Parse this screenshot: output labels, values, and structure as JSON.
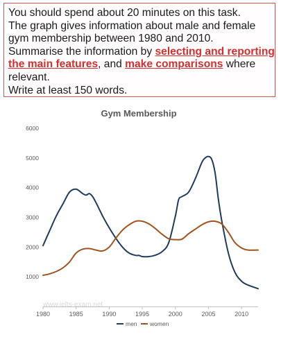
{
  "task": {
    "line1": "You should spend about 20 minutes on this task.",
    "line2": "The graph gives information about male and female gym membership between 1980 and 2010.",
    "line3_prefix": "Summarise the information by ",
    "line3_emph1": "selecting and reporting the main features",
    "line3_mid": ", and ",
    "line3_emph2": "make comparisons",
    "line3_suffix": " where relevant.",
    "line4": "Write at least 150 words."
  },
  "watermark": "www.ielts-exam.net",
  "colors": {
    "men": "#1f3a5f",
    "women": "#a0531e",
    "task_border": "#d9534f",
    "emphasis": "#d32f2f"
  },
  "chart_data": {
    "type": "line",
    "title": "Gym Membership",
    "xlabel": "",
    "ylabel": "",
    "xlim": [
      1980,
      2012.5
    ],
    "ylim": [
      0,
      6000
    ],
    "xticks": [
      1980,
      1985,
      1990,
      1995,
      2000,
      2005,
      2010
    ],
    "yticks": [
      1000,
      2000,
      3000,
      4000,
      5000,
      6000
    ],
    "grid": false,
    "legend_position": "bottom",
    "series": [
      {
        "name": "men",
        "color": "#1f3a5f",
        "x": [
          1980,
          1981,
          1982,
          1983,
          1984,
          1985,
          1986,
          1986.5,
          1987,
          1987.5,
          1988,
          1989,
          1990,
          1991,
          1992,
          1993,
          1994,
          1994.5,
          1995,
          1996,
          1997,
          1998,
          1999,
          2000,
          2000.5,
          2001,
          2002,
          2003,
          2004,
          2004.5,
          2005,
          2005.5,
          2006,
          2006.5,
          2007,
          2008,
          2009,
          2010,
          2011,
          2012.5
        ],
        "values": [
          2050,
          2550,
          3050,
          3450,
          3850,
          3950,
          3800,
          3750,
          3800,
          3700,
          3500,
          3050,
          2650,
          2300,
          2000,
          1800,
          1720,
          1720,
          1680,
          1680,
          1730,
          1850,
          2150,
          3050,
          3600,
          3700,
          3850,
          4300,
          4850,
          5000,
          5050,
          4950,
          4500,
          3600,
          2900,
          1800,
          1150,
          850,
          720,
          600
        ]
      },
      {
        "name": "women",
        "color": "#a0531e",
        "x": [
          1980,
          1981,
          1982,
          1983,
          1984,
          1985,
          1986,
          1987,
          1988,
          1989,
          1990,
          1991,
          1992,
          1993,
          1994,
          1995,
          1996,
          1997,
          1998,
          1999,
          2000,
          2001,
          2002,
          2003,
          2004,
          2005,
          2006,
          2007,
          2008,
          2009,
          2010,
          2011,
          2012.5
        ],
        "values": [
          1050,
          1100,
          1180,
          1300,
          1500,
          1800,
          1930,
          1950,
          1900,
          1870,
          2000,
          2300,
          2570,
          2750,
          2870,
          2870,
          2780,
          2620,
          2430,
          2280,
          2250,
          2270,
          2450,
          2600,
          2750,
          2850,
          2870,
          2780,
          2500,
          2150,
          1970,
          1900,
          1900
        ]
      }
    ]
  }
}
